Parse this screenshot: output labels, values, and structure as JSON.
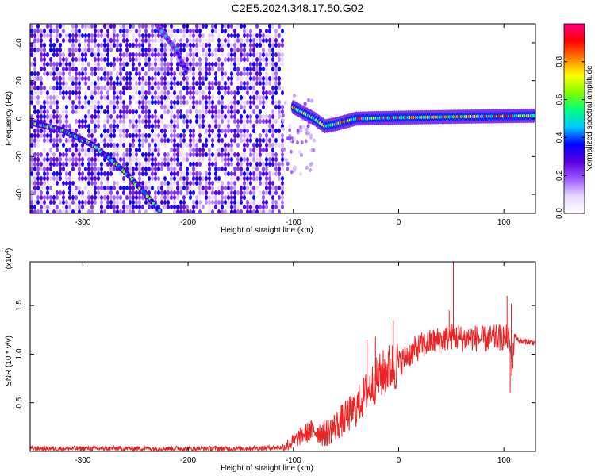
{
  "title": "C2E5.2024.348.17.50.G02",
  "chart_data": [
    {
      "type": "heatmap",
      "xlabel": "Height of straight line (km)",
      "ylabel": "Frequency (Hz)",
      "xlim": [
        -350,
        130
      ],
      "ylim": [
        -50,
        50
      ],
      "xticks": [
        -300,
        -200,
        -100,
        0,
        100
      ],
      "yticks": [
        -40,
        -20,
        0,
        20,
        40
      ],
      "colorbar": {
        "label": "Normalized spectral amplitude",
        "range": [
          0.0,
          1.0
        ],
        "ticks": [
          0.0,
          0.2,
          0.4,
          0.6,
          0.8
        ],
        "tick_labels": [
          "0.0",
          "0.2",
          "0.4",
          "0.6",
          "0.8"
        ],
        "colors": [
          "#ffffff",
          "#e8d8ff",
          "#9b59ff",
          "#5a00e0",
          "#0000ff",
          "#00c8ff",
          "#00ff80",
          "#80ff00",
          "#ffff00",
          "#ff8000",
          "#ff0000",
          "#ff0080"
        ]
      },
      "noise_region": {
        "x_range": [
          -350,
          -110
        ],
        "level": 0.25
      },
      "ridges": [
        {
          "name": "",
          "points": [
            [
              -350,
              -2
            ],
            [
              -320,
              -6
            ],
            [
              -290,
              -14
            ],
            [
              -260,
              -28
            ],
            [
              -240,
              -40
            ],
            [
              -225,
              -50
            ]
          ],
          "level": 0.4
        },
        {
          "name": "",
          "points": [
            [
              -230,
              50
            ],
            [
              -210,
              35
            ],
            [
              -200,
              22
            ]
          ],
          "level": 0.3
        },
        {
          "name": "",
          "points": [
            [
              -100,
              6
            ],
            [
              -80,
              0
            ],
            [
              -70,
              -4
            ],
            [
              -60,
              -3
            ],
            [
              -40,
              0
            ],
            [
              0,
              0.5
            ],
            [
              60,
              1
            ],
            [
              130,
              1.5
            ]
          ],
          "level": 0.8
        }
      ]
    },
    {
      "type": "line",
      "xlabel": "Height of straight line (km)",
      "ylabel": "SNR (10 * v/v)",
      "yscale_label": "(x10",
      "yscale_exponent": "4",
      "xlim": [
        -350,
        130
      ],
      "ylim": [
        0,
        1.95
      ],
      "xticks": [
        -300,
        -200,
        -100,
        0,
        100
      ],
      "yticks": [
        0.5,
        1.0,
        1.5
      ],
      "ytick_labels": [
        "0.5",
        "1.0",
        "1.5"
      ],
      "color": "#ee2222",
      "series": [
        {
          "x": [
            -350,
            -300,
            -250,
            -200,
            -150,
            -110,
            -100,
            -90,
            -80,
            -70,
            -60,
            -50,
            -40,
            -30,
            -20,
            -10,
            0,
            10,
            20,
            30,
            40,
            50,
            60,
            70,
            80,
            90,
            100,
            105,
            108,
            110,
            115,
            120,
            130
          ],
          "y": [
            0.03,
            0.03,
            0.03,
            0.03,
            0.03,
            0.04,
            0.1,
            0.18,
            0.22,
            0.18,
            0.26,
            0.35,
            0.45,
            0.62,
            0.75,
            0.85,
            0.9,
            1.0,
            1.08,
            1.12,
            1.15,
            1.18,
            1.16,
            1.17,
            1.15,
            1.16,
            1.18,
            1.15,
            0.85,
            1.2,
            1.13,
            1.13,
            1.12
          ]
        }
      ],
      "spikes": [
        {
          "x": 52,
          "y": 1.95
        },
        {
          "x": 57,
          "y": 1.3
        },
        {
          "x": 48,
          "y": 1.45
        },
        {
          "x": 103,
          "y": 1.6
        },
        {
          "x": 107,
          "y": 1.52
        },
        {
          "x": 106,
          "y": 0.6
        },
        {
          "x": -5,
          "y": 1.35
        },
        {
          "x": -22,
          "y": 1.18
        },
        {
          "x": -30,
          "y": 1.15
        }
      ]
    }
  ]
}
